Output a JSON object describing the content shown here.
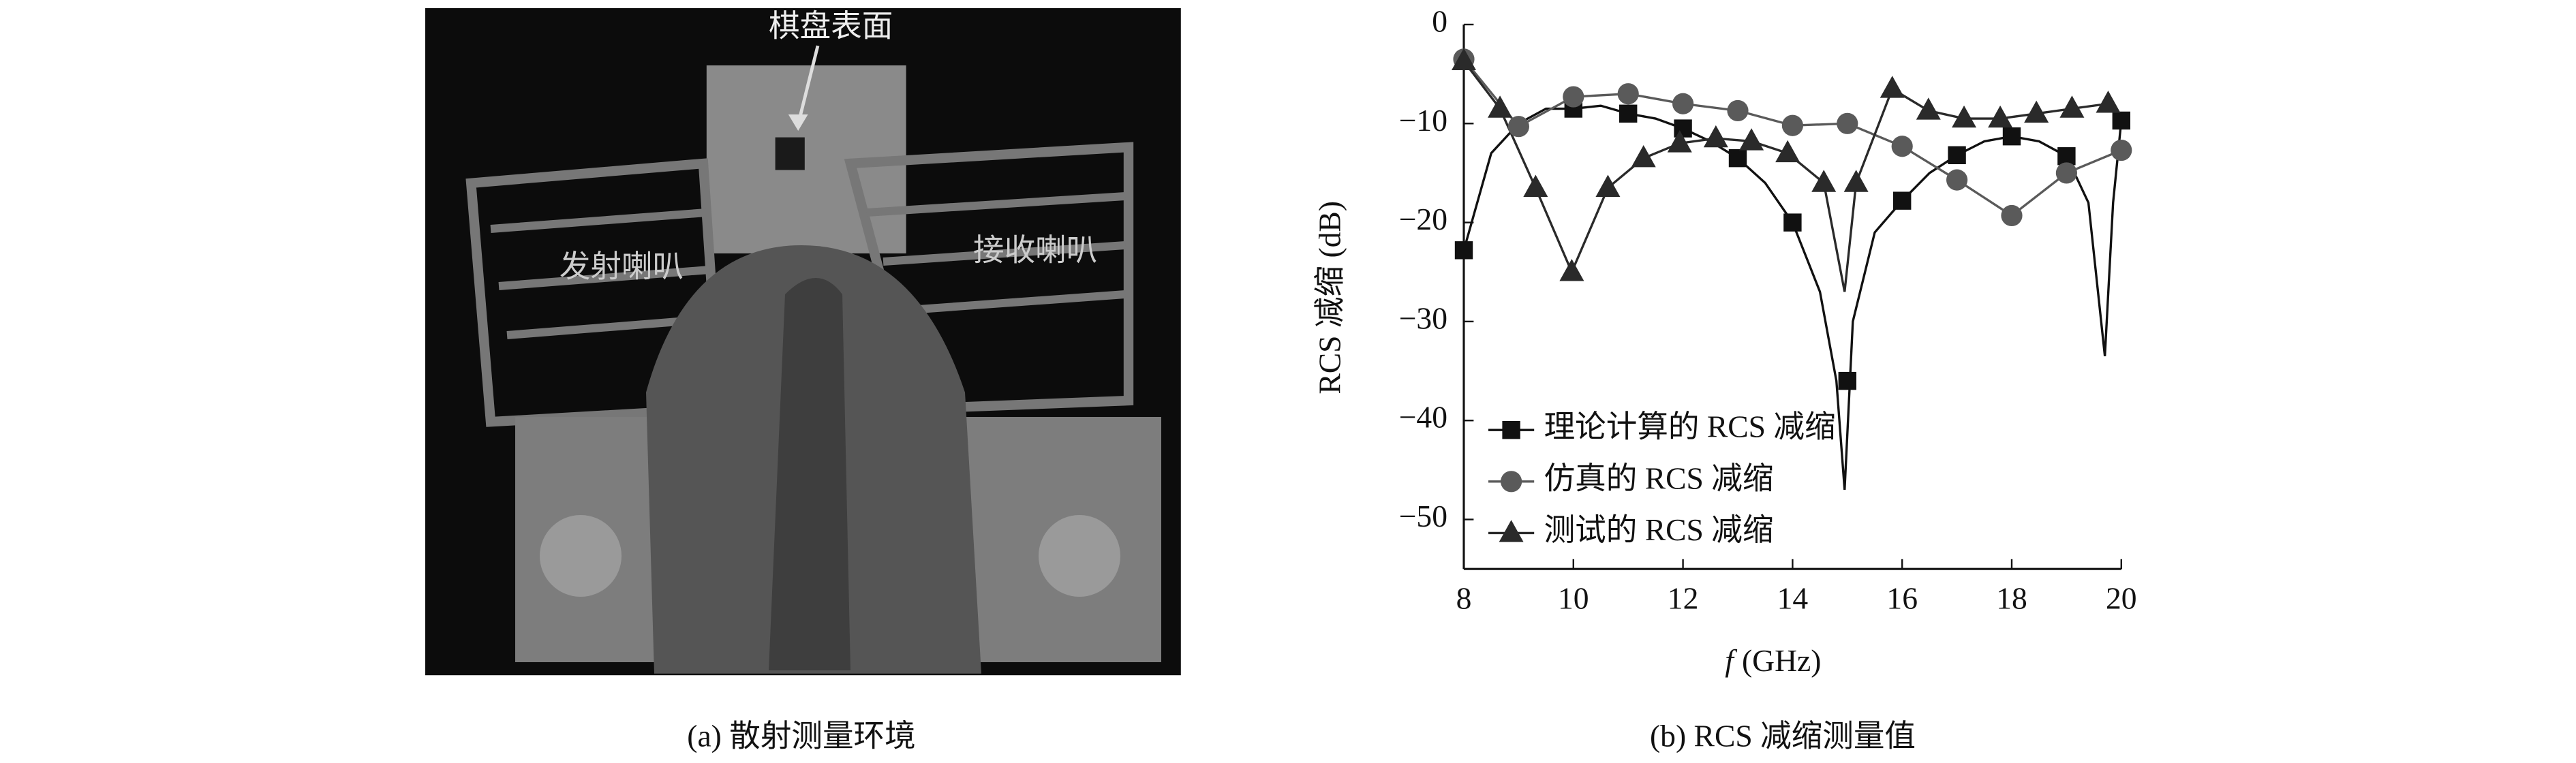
{
  "photo": {
    "label_surface": "棋盘表面",
    "label_tx": "发射喇叭",
    "label_rx": "接收喇叭"
  },
  "caption_a": "(a) 散射测量环境",
  "caption_b": "(b) RCS 减缩测量值",
  "chart_data": {
    "type": "line",
    "x_label_var": "f",
    "x_label_unit": "(GHz)",
    "y_label": "RCS 减缩 (dB)",
    "xlim": [
      8,
      20
    ],
    "xticks": [
      8,
      10,
      12,
      14,
      16,
      18,
      20
    ],
    "ylim": [
      -55,
      0
    ],
    "yticks": [
      0,
      {
        "value": -10,
        "label": "−10"
      },
      {
        "value": -20,
        "label": "−20"
      },
      {
        "value": -30,
        "label": "−30"
      },
      {
        "value": -40,
        "label": "−40"
      },
      {
        "value": -50,
        "label": "−50"
      }
    ],
    "legend": "lower left",
    "series": [
      {
        "name": "理论计算的 RCS 减缩",
        "color": "#111111",
        "marker": "square",
        "x": [
          8,
          10,
          11,
          12,
          13,
          14,
          15,
          16,
          17,
          18,
          19,
          20
        ],
        "values": [
          -22.8,
          -8.5,
          -9,
          -10.5,
          -13.5,
          -20,
          -36,
          -17.8,
          -13.2,
          -11.3,
          -13.3,
          -9.7
        ],
        "curve_x": [
          8,
          8.5,
          9,
          9.5,
          10,
          10.5,
          11,
          11.5,
          12,
          12.5,
          13,
          13.5,
          14,
          14.5,
          14.8,
          14.95,
          15.1,
          15.5,
          16,
          16.5,
          17,
          17.5,
          18,
          18.5,
          19,
          19.4,
          19.7,
          19.85,
          20
        ],
        "curve_values": [
          -22.8,
          -13,
          -10,
          -8.5,
          -8.5,
          -8.2,
          -9,
          -9.5,
          -10.5,
          -11.8,
          -13.5,
          -16,
          -20,
          -27,
          -36,
          -47,
          -30,
          -21,
          -17.8,
          -15,
          -13.2,
          -11.8,
          -11.3,
          -11.8,
          -13.3,
          -18,
          -33.5,
          -18,
          -9.7
        ]
      },
      {
        "name": "仿真的 RCS 减缩",
        "color": "#5a5a5a",
        "marker": "circle",
        "x": [
          8,
          9,
          10,
          11,
          12,
          13,
          14,
          15,
          16,
          17,
          18,
          19,
          20
        ],
        "values": [
          -3.5,
          -10.3,
          -7.3,
          -7,
          -8,
          -8.7,
          -10.2,
          -10,
          -12.3,
          -15.7,
          -19.3,
          -15,
          -12.7
        ],
        "curve_x": [
          8,
          9,
          10,
          11,
          12,
          13,
          14,
          15,
          16,
          17,
          18,
          19,
          20
        ],
        "curve_values": [
          -3.5,
          -10.3,
          -7.3,
          -7,
          -8,
          -8.7,
          -10.2,
          -10,
          -12.3,
          -15.7,
          -19.3,
          -15,
          -12.7
        ]
      },
      {
        "name": "测试的 RCS 减缩",
        "color": "#2a2a2a",
        "marker": "triangle",
        "x": [
          8,
          8.66,
          9.31,
          9.97,
          10.63,
          11.28,
          11.94,
          12.6,
          13.25,
          13.91,
          14.57,
          15.16,
          15.82,
          16.48,
          17.13,
          17.79,
          18.45,
          19.1,
          19.76
        ],
        "values": [
          -3.7,
          -8.5,
          -16.5,
          -25,
          -16.5,
          -13.5,
          -12,
          -11.5,
          -11.8,
          -13,
          -16,
          -16,
          -6.5,
          -8.7,
          -9.5,
          -9.5,
          -9,
          -8.5,
          -8
        ],
        "curve_x": [
          8,
          8.66,
          9.31,
          9.97,
          10.63,
          11.28,
          11.94,
          12.6,
          13.25,
          13.91,
          14.57,
          14.95,
          15.16,
          15.82,
          16.48,
          17.13,
          17.79,
          18.45,
          19.1,
          19.76
        ],
        "curve_values": [
          -3.7,
          -8.5,
          -16.5,
          -25,
          -16.5,
          -13.5,
          -12,
          -11.5,
          -11.8,
          -13,
          -16,
          -27,
          -16,
          -6.5,
          -8.7,
          -9.5,
          -9.5,
          -9,
          -8.5,
          -8
        ]
      }
    ]
  }
}
